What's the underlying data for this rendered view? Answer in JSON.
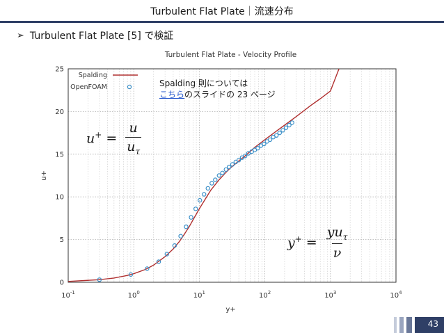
{
  "slide": {
    "title": "Turbulent Flat Plate｜流速分布",
    "bullet": "Turbulent Flat Plate [5] で検証",
    "page_number": "43"
  },
  "note": {
    "line1": "Spalding 則については",
    "link": "こちら",
    "line2_rest": "のスライドの 23 ページ"
  },
  "equations": {
    "uplus": {
      "lhs": "u",
      "lhs_sup": "+",
      "eq": "=",
      "num": "u",
      "den": "u",
      "den_sub": "τ"
    },
    "yplus": {
      "lhs": "y",
      "lhs_sup": "+",
      "eq": "=",
      "num": "yu",
      "num_sub": "τ",
      "den": "ν"
    }
  },
  "colors": {
    "title_bar": "#2f3f66",
    "spalding": "#b03030",
    "openfoam": "#3a8fc8"
  },
  "chart_data": {
    "type": "line",
    "title": "Turbulent Flat Plate - Velocity Profile",
    "xlabel": "y+",
    "ylabel": "u+",
    "xscale": "log",
    "xlim": [
      0.1,
      10000
    ],
    "ylim": [
      0,
      25
    ],
    "grid": true,
    "legend_position": "top-left",
    "x_ticks": [
      {
        "base": "10",
        "exp": "-1",
        "value": 0.1
      },
      {
        "base": "10",
        "exp": "0",
        "value": 1
      },
      {
        "base": "10",
        "exp": "1",
        "value": 10
      },
      {
        "base": "10",
        "exp": "2",
        "value": 100
      },
      {
        "base": "10",
        "exp": "3",
        "value": 1000
      },
      {
        "base": "10",
        "exp": "4",
        "value": 10000
      }
    ],
    "y_ticks": [
      "0",
      "5",
      "10",
      "15",
      "20",
      "25"
    ],
    "series": [
      {
        "name": "Spalding",
        "style": "line",
        "x": [
          0.1,
          0.3,
          0.5,
          0.8,
          1.0,
          1.5,
          2.0,
          3.0,
          4.0,
          5.0,
          6.0,
          7.0,
          8.0,
          10.0,
          12.0,
          15.0,
          20.0,
          25.0,
          30.0,
          40.0,
          50.0,
          70.0,
          100.0,
          150.0,
          200.0,
          300.0,
          500.0,
          700.0,
          1000.0,
          1350.0
        ],
        "y": [
          0.1,
          0.3,
          0.5,
          0.8,
          1.0,
          1.5,
          2.0,
          3.0,
          3.9,
          4.8,
          5.7,
          6.5,
          7.3,
          8.6,
          9.6,
          10.8,
          12.0,
          12.8,
          13.4,
          14.2,
          14.8,
          15.8,
          16.7,
          17.7,
          18.4,
          19.4,
          20.7,
          21.5,
          22.4,
          25.0
        ]
      },
      {
        "name": "OpenFOAM",
        "style": "markers",
        "x": [
          0.3,
          0.9,
          1.6,
          2.4,
          3.2,
          4.2,
          5.2,
          6.3,
          7.5,
          8.8,
          10.2,
          11.8,
          13.5,
          15.5,
          17.5,
          20.0,
          22.5,
          25.5,
          28.5,
          32.0,
          36.0,
          40.0,
          45.0,
          50.0,
          56.0,
          63.0,
          70.0,
          78.0,
          87.0,
          97.0,
          108.0,
          120.0,
          134.0,
          150.0,
          168.0,
          188.0,
          210.0,
          235.0,
          260.0
        ],
        "y": [
          0.3,
          0.9,
          1.6,
          2.4,
          3.3,
          4.3,
          5.4,
          6.5,
          7.6,
          8.6,
          9.6,
          10.3,
          11.0,
          11.6,
          12.0,
          12.5,
          12.8,
          13.2,
          13.5,
          13.8,
          14.1,
          14.3,
          14.6,
          14.8,
          15.1,
          15.3,
          15.5,
          15.7,
          16.0,
          16.2,
          16.5,
          16.7,
          17.0,
          17.2,
          17.5,
          17.8,
          18.1,
          18.4,
          18.7
        ]
      }
    ]
  }
}
